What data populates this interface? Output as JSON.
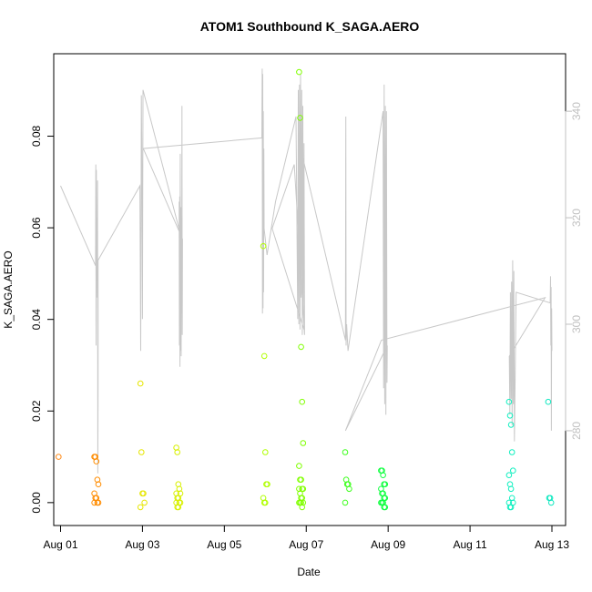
{
  "chart_data": {
    "type": "scatter",
    "title": "ATOM1 Southbound K_SAGA.AERO",
    "xlabel": "Date",
    "ylabel": "K_SAGA.AERO",
    "xlim": [
      "2016-07-31T20:00",
      "2016-08-13T08:00"
    ],
    "ylim": [
      -0.005,
      0.098
    ],
    "y2lim": [
      262.2,
      350.8
    ],
    "xticks": [
      {
        "date": "2016-08-01T00:00",
        "label": "Aug 01"
      },
      {
        "date": "2016-08-03T00:00",
        "label": "Aug 03"
      },
      {
        "date": "2016-08-05T00:00",
        "label": "Aug 05"
      },
      {
        "date": "2016-08-07T00:00",
        "label": "Aug 07"
      },
      {
        "date": "2016-08-09T00:00",
        "label": "Aug 09"
      },
      {
        "date": "2016-08-11T00:00",
        "label": "Aug 11"
      },
      {
        "date": "2016-08-13T00:00",
        "label": "Aug 13"
      }
    ],
    "yticks": [
      {
        "value": 0.0,
        "label": "0.00"
      },
      {
        "value": 0.02,
        "label": "0.02"
      },
      {
        "value": 0.04,
        "label": "0.04"
      },
      {
        "value": 0.06,
        "label": "0.06"
      },
      {
        "value": 0.08,
        "label": "0.08"
      }
    ],
    "y2ticks": [
      {
        "value": 280,
        "label": "280"
      },
      {
        "value": 300,
        "label": "300"
      },
      {
        "value": 320,
        "label": "320"
      },
      {
        "value": 340,
        "label": "340"
      }
    ],
    "grid": false,
    "marker": "open-circle",
    "point_groups": [
      {
        "date": "2016-08-01T00:00",
        "color": "#ff8c1a",
        "values": [
          0.01
        ]
      },
      {
        "date": "2016-08-01T21:00",
        "color": "#ff8c00",
        "values": [
          0.01,
          0.01,
          0.009,
          0.005,
          0.004,
          0.002,
          0.001,
          0.001,
          0.0,
          0.0,
          0.0
        ]
      },
      {
        "date": "2016-08-03T00:00",
        "color": "#e6e600",
        "values": [
          0.026,
          0.011,
          0.002,
          0.002,
          0.0,
          -0.001
        ]
      },
      {
        "date": "2016-08-03T21:00",
        "color": "#d8f000",
        "values": [
          0.012,
          0.011,
          0.004,
          0.003,
          0.002,
          0.002,
          0.001,
          0.001,
          0.0,
          0.0,
          0.0,
          -0.001,
          -0.001
        ]
      },
      {
        "date": "2016-08-06T00:00",
        "color": "#b0ff00",
        "values": [
          0.056,
          0.032,
          0.011,
          0.004,
          0.004,
          0.001,
          0.0,
          0.0
        ]
      },
      {
        "date": "2016-08-06T21:00",
        "color": "#80ff00",
        "values": [
          0.094,
          0.084,
          0.034,
          0.022,
          0.013,
          0.008,
          0.005,
          0.005,
          0.003,
          0.003,
          0.003,
          0.002,
          0.001,
          0.001,
          0.0,
          0.0,
          0.0,
          0.0,
          -0.001
        ]
      },
      {
        "date": "2016-08-08T00:00",
        "color": "#40ff20",
        "values": [
          0.011,
          0.005,
          0.004,
          0.004,
          0.003,
          0.0
        ]
      },
      {
        "date": "2016-08-08T21:00",
        "color": "#10ff40",
        "values": [
          0.007,
          0.007,
          0.006,
          0.004,
          0.004,
          0.003,
          0.002,
          0.002,
          0.001,
          0.001,
          0.0,
          0.0,
          0.0,
          -0.001,
          -0.001
        ]
      },
      {
        "date": "2016-08-12T00:00",
        "color": "#10f0c0",
        "values": [
          0.022,
          0.019,
          0.017,
          0.011,
          0.007,
          0.006,
          0.004,
          0.003,
          0.001,
          0.0,
          0.0,
          -0.001,
          -0.001
        ]
      },
      {
        "date": "2016-08-12T23:00",
        "color": "#10e8c0",
        "values": [
          0.022,
          0.001,
          0.001,
          0.0
        ]
      }
    ],
    "secondary_series": {
      "axis": "right",
      "color": "#c8c8c8",
      "points": [
        [
          "2016-08-01T00:00",
          326
        ],
        [
          "2016-08-01T20:30",
          311
        ],
        [
          "2016-08-01T20:40",
          330
        ],
        [
          "2016-08-01T20:50",
          296
        ],
        [
          "2016-08-01T21:00",
          329
        ],
        [
          "2016-08-01T21:10",
          305
        ],
        [
          "2016-08-01T21:20",
          320
        ],
        [
          "2016-08-01T21:30",
          312
        ],
        [
          "2016-08-01T21:40",
          327
        ],
        [
          "2016-08-01T21:50",
          272
        ],
        [
          "2016-08-01T22:00",
          289
        ],
        [
          "2016-08-01T22:00",
          312
        ],
        [
          "2016-08-02T22:30",
          326
        ],
        [
          "2016-08-02T23:00",
          295
        ],
        [
          "2016-08-02T23:20",
          343
        ],
        [
          "2016-08-02T23:40",
          330
        ],
        [
          "2016-08-03T00:00",
          301
        ],
        [
          "2016-08-03T00:20",
          344
        ],
        [
          "2016-08-03T23:00",
          316
        ],
        [
          "2016-08-03T21:30",
          323
        ],
        [
          "2016-08-03T21:40",
          296
        ],
        [
          "2016-08-03T21:50",
          324
        ],
        [
          "2016-08-03T22:00",
          292
        ],
        [
          "2016-08-03T22:10",
          332
        ],
        [
          "2016-08-03T22:20",
          295
        ],
        [
          "2016-08-03T22:30",
          322
        ],
        [
          "2016-08-03T22:40",
          294
        ],
        [
          "2016-08-03T22:50",
          319
        ],
        [
          "2016-08-03T23:00",
          302
        ],
        [
          "2016-08-03T23:10",
          341
        ],
        [
          "2016-08-03T23:20",
          298
        ],
        [
          "2016-08-03T23:30",
          316
        ],
        [
          "2016-08-03T00:30",
          333
        ],
        [
          "2016-08-05T22:00",
          335
        ],
        [
          "2016-08-05T22:10",
          348
        ],
        [
          "2016-08-05T22:20",
          302
        ],
        [
          "2016-08-05T22:30",
          347
        ],
        [
          "2016-08-05T22:40",
          303
        ],
        [
          "2016-08-05T22:50",
          340
        ],
        [
          "2016-08-05T23:00",
          306
        ],
        [
          "2016-08-05T23:10",
          333
        ],
        [
          "2016-08-05T23:20",
          318
        ],
        [
          "2016-08-06T01:00",
          313
        ],
        [
          "2016-08-06T06:00",
          323
        ],
        [
          "2016-08-06T18:00",
          339
        ],
        [
          "2016-08-06T19:00",
          301
        ],
        [
          "2016-08-06T19:20",
          344
        ],
        [
          "2016-08-06T19:40",
          300
        ],
        [
          "2016-08-06T20:00",
          345
        ],
        [
          "2016-08-06T20:20",
          299
        ],
        [
          "2016-08-06T20:40",
          347
        ],
        [
          "2016-08-06T21:00",
          305
        ],
        [
          "2016-08-06T21:20",
          344
        ],
        [
          "2016-08-06T21:40",
          298
        ],
        [
          "2016-08-06T22:00",
          341
        ],
        [
          "2016-08-06T22:20",
          302
        ],
        [
          "2016-08-06T22:40",
          334
        ],
        [
          "2016-08-06T23:00",
          298
        ],
        [
          "2016-08-06T17:00",
          330
        ],
        [
          "2016-08-06T04:00",
          318
        ],
        [
          "2016-08-06T22:40",
          299
        ],
        [
          "2016-08-06T20:00",
          334
        ],
        [
          "2016-08-07T23:00",
          297
        ],
        [
          "2016-08-07T23:10",
          339
        ],
        [
          "2016-08-07T23:20",
          296
        ],
        [
          "2016-08-07T23:40",
          300
        ],
        [
          "2016-08-08T00:30",
          295
        ],
        [
          "2016-08-08T21:00",
          340
        ],
        [
          "2016-08-08T21:20",
          288
        ],
        [
          "2016-08-08T21:40",
          345
        ],
        [
          "2016-08-08T22:00",
          285
        ],
        [
          "2016-08-08T22:20",
          341
        ],
        [
          "2016-08-08T22:40",
          283
        ],
        [
          "2016-08-08T23:00",
          340
        ],
        [
          "2016-08-08T23:20",
          289
        ],
        [
          "2016-08-08T23:30",
          296
        ],
        [
          "2016-08-07T23:00",
          280
        ],
        [
          "2016-08-08T20:00",
          297
        ],
        [
          "2016-08-12T20:00",
          305
        ],
        [
          "2016-08-11T23:00",
          294
        ],
        [
          "2016-08-11T23:20",
          283
        ],
        [
          "2016-08-11T23:40",
          306
        ],
        [
          "2016-08-12T00:00",
          286
        ],
        [
          "2016-08-12T00:20",
          308
        ],
        [
          "2016-08-12T00:40",
          281
        ],
        [
          "2016-08-12T01:00",
          312
        ],
        [
          "2016-08-12T01:20",
          285
        ],
        [
          "2016-08-12T01:40",
          310
        ],
        [
          "2016-08-12T02:00",
          278
        ],
        [
          "2016-08-12T03:00",
          306
        ],
        [
          "2016-08-12T23:00",
          304
        ],
        [
          "2016-08-12T23:10",
          309
        ],
        [
          "2016-08-12T23:20",
          296
        ],
        [
          "2016-08-12T23:30",
          307
        ],
        [
          "2016-08-12T23:40",
          280
        ],
        [
          "2016-08-12T23:50",
          303
        ],
        [
          "2016-08-13T00:00",
          295
        ]
      ]
    }
  }
}
